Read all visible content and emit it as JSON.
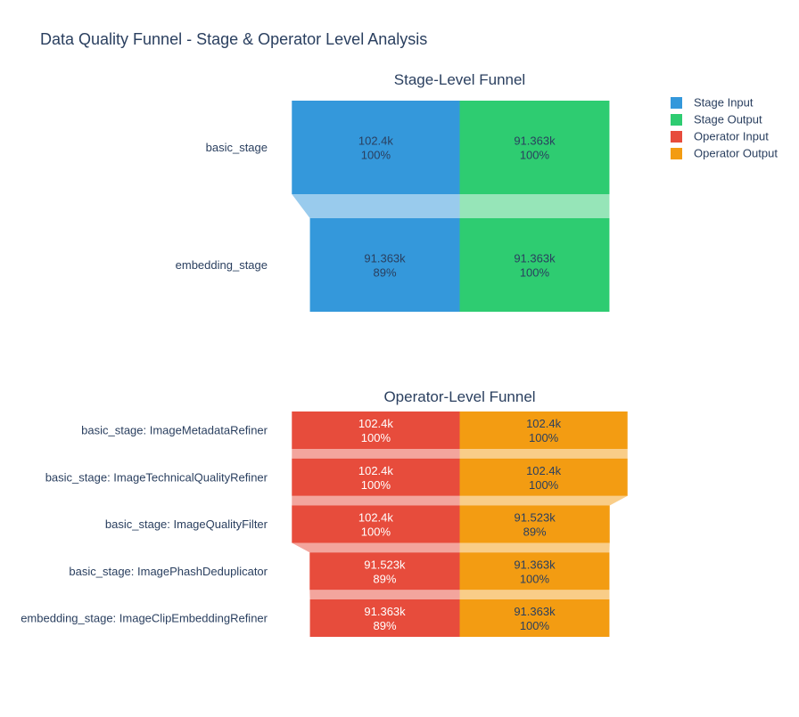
{
  "title": "Data Quality Funnel - Stage & Operator Level Analysis",
  "legend": {
    "position": "top-right",
    "items": [
      {
        "label": "Stage Input",
        "color": "#3498db"
      },
      {
        "label": "Stage Output",
        "color": "#2ecc71"
      },
      {
        "label": "Operator Input",
        "color": "#e74c3c"
      },
      {
        "label": "Operator Output",
        "color": "#f39c12"
      }
    ]
  },
  "chart_data": [
    {
      "type": "funnel",
      "title": "Stage-Level Funnel",
      "categories": [
        "basic_stage",
        "embedding_stage"
      ],
      "series": [
        {
          "name": "Stage Input",
          "color": "#3498db",
          "values": [
            102400,
            91363
          ],
          "labels": [
            "102.4k",
            "91.363k"
          ],
          "percent_labels": [
            "100%",
            "89%"
          ]
        },
        {
          "name": "Stage Output",
          "color": "#2ecc71",
          "values": [
            91363,
            91363
          ],
          "labels": [
            "91.363k",
            "91.363k"
          ],
          "percent_labels": [
            "100%",
            "100%"
          ]
        }
      ]
    },
    {
      "type": "funnel",
      "title": "Operator-Level Funnel",
      "categories": [
        "basic_stage: ImageMetadataRefiner",
        "basic_stage: ImageTechnicalQualityRefiner",
        "basic_stage: ImageQualityFilter",
        "basic_stage: ImagePhashDeduplicator",
        "embedding_stage: ImageClipEmbeddingRefiner"
      ],
      "series": [
        {
          "name": "Operator Input",
          "color": "#e74c3c",
          "values": [
            102400,
            102400,
            102400,
            91523,
            91363
          ],
          "labels": [
            "102.4k",
            "102.4k",
            "102.4k",
            "91.523k",
            "91.363k"
          ],
          "percent_labels": [
            "100%",
            "100%",
            "100%",
            "89%",
            "89%"
          ]
        },
        {
          "name": "Operator Output",
          "color": "#f39c12",
          "values": [
            102400,
            102400,
            91523,
            91363,
            91363
          ],
          "labels": [
            "102.4k",
            "102.4k",
            "91.523k",
            "91.363k",
            "91.363k"
          ],
          "percent_labels": [
            "100%",
            "100%",
            "89%",
            "100%",
            "100%"
          ]
        }
      ]
    }
  ]
}
